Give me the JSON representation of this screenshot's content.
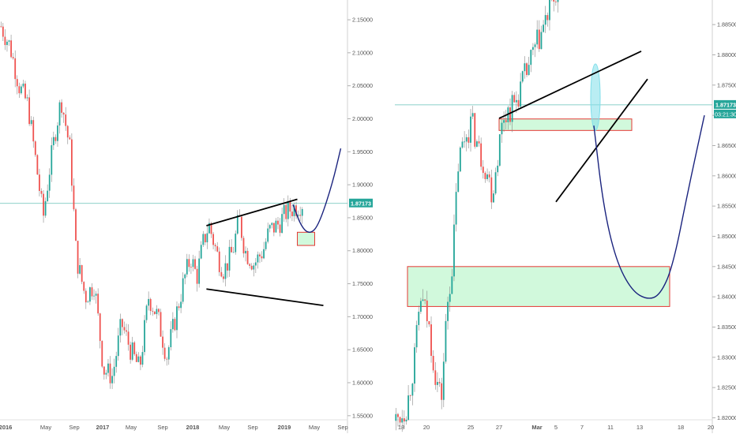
{
  "colors": {
    "up": "#26a69a",
    "down": "#ef5350",
    "background": "#ffffff",
    "axis_text": "#555555",
    "price_line": "#26a69a",
    "drawing_black": "#000000",
    "projection_blue": "#1a237e",
    "zone_fill": "#b9f6ca",
    "zone_border": "#e53935",
    "highlight_ellipse": "#80deea"
  },
  "chart_data": [
    {
      "type": "candlestick",
      "panel": "left",
      "timeframe": "weekly",
      "x_tick_labels": [
        "2016",
        "May",
        "Sep",
        "2017",
        "May",
        "Sep",
        "2018",
        "May",
        "Sep",
        "2019",
        "May",
        "Sep"
      ],
      "y_tick_labels": [
        "2.15000",
        "2.10000",
        "2.05000",
        "2.00000",
        "1.95000",
        "1.90000",
        "1.85000",
        "1.80000",
        "1.75000",
        "1.70000",
        "1.65000",
        "1.60000",
        "1.55000"
      ],
      "ylim": [
        1.545,
        2.168
      ],
      "last_price_label": "1.87173",
      "last_price": 1.87173,
      "grid": false,
      "trend_lines": [
        {
          "name": "upper",
          "from": [
            2018.15,
            1.838
          ],
          "to": [
            2019.15,
            1.878
          ]
        },
        {
          "name": "lower",
          "from": [
            2018.15,
            1.742
          ],
          "to": [
            2019.45,
            1.717
          ]
        }
      ],
      "zones": [
        {
          "x": [
            2019.15,
            2019.35
          ],
          "y": [
            1.808,
            1.828
          ]
        }
      ],
      "projection_path": [
        [
          2019.1,
          1.87
        ],
        [
          2019.2,
          1.835
        ],
        [
          2019.3,
          1.825
        ],
        [
          2019.4,
          1.84
        ],
        [
          2019.55,
          1.9
        ],
        [
          2019.65,
          1.955
        ]
      ],
      "candles": []
    },
    {
      "type": "candlestick",
      "panel": "right",
      "timeframe": "hourly",
      "x_tick_labels": [
        "18",
        "20",
        "25",
        "27",
        "Mar",
        "5",
        "7",
        "11",
        "13",
        "18",
        "20"
      ],
      "y_tick_labels": [
        "1.88500",
        "1.88000",
        "1.87500",
        "1.87000",
        "1.86500",
        "1.86000",
        "1.85500",
        "1.85000",
        "1.84500",
        "1.84000",
        "1.83500",
        "1.83000",
        "1.82500",
        "1.82000"
      ],
      "ylim": [
        1.8198,
        1.8875
      ],
      "last_price_label": "1.87173",
      "last_price": 1.87173,
      "countdown_label": "03:21:30",
      "grid": false,
      "trend_lines": [
        {
          "name": "upper",
          "from": [
            0.33,
            1.8695
          ],
          "to": [
            0.78,
            1.8806
          ]
        },
        {
          "name": "lower",
          "from": [
            0.51,
            1.8557
          ],
          "to": [
            0.8,
            1.876
          ]
        }
      ],
      "zones": [
        {
          "x": [
            0.33,
            0.75
          ],
          "y": [
            1.8675,
            1.8694
          ]
        },
        {
          "x": [
            0.04,
            0.87
          ],
          "y": [
            1.8384,
            1.845
          ]
        }
      ],
      "highlight": {
        "x": 0.635,
        "y": [
          1.8675,
          1.8785
        ]
      },
      "projection_path": [
        [
          0.63,
          1.8683
        ],
        [
          0.66,
          1.855
        ],
        [
          0.7,
          1.846
        ],
        [
          0.75,
          1.841
        ],
        [
          0.8,
          1.8395
        ],
        [
          0.84,
          1.8403
        ],
        [
          0.88,
          1.845
        ],
        [
          0.93,
          1.858
        ],
        [
          0.98,
          1.87
        ]
      ],
      "candles": []
    }
  ]
}
